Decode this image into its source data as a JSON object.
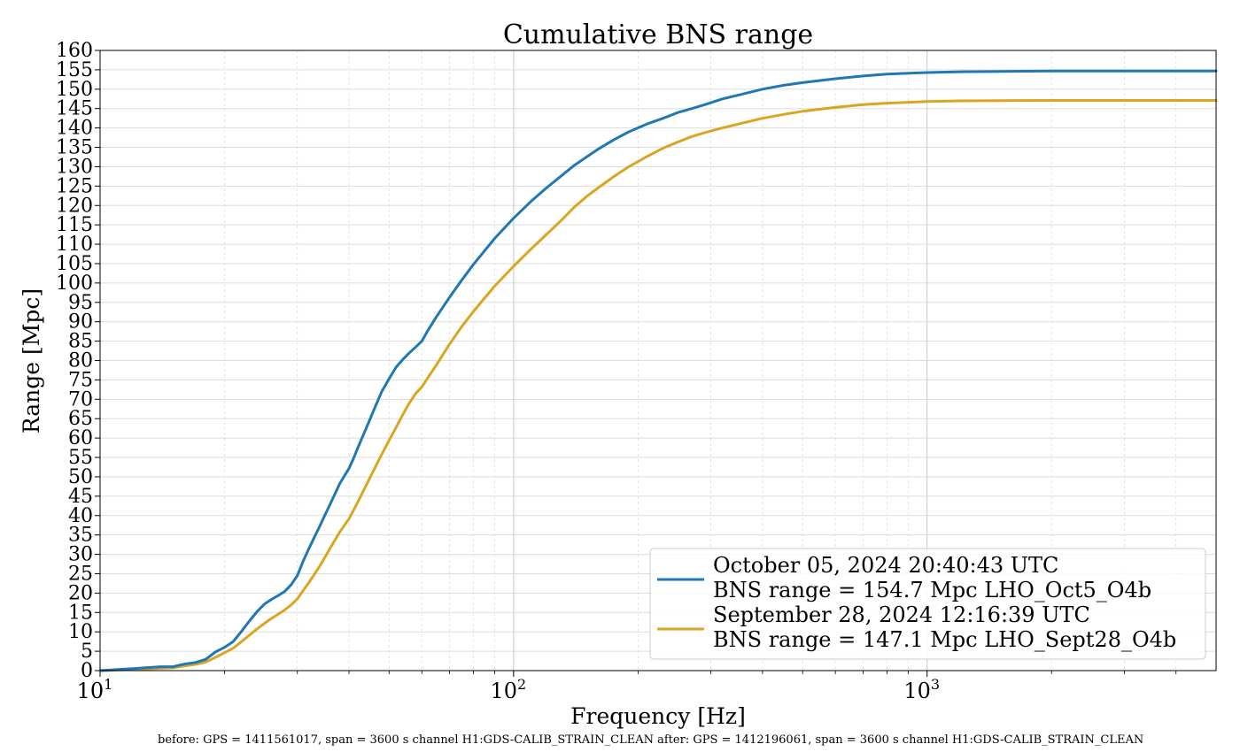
{
  "chart_data": {
    "type": "line",
    "title": "Cumulative BNS range",
    "xlabel": "Frequency [Hz]",
    "ylabel": "Range [Mpc]",
    "xscale": "log",
    "xlim": [
      10,
      5000
    ],
    "ylim": [
      0,
      160
    ],
    "ytick_step": 5,
    "x_major_ticks": [
      {
        "value": 10,
        "base": "10",
        "exp": "1"
      },
      {
        "value": 100,
        "base": "10",
        "exp": "2"
      },
      {
        "value": 1000,
        "base": "10",
        "exp": "3"
      }
    ],
    "grid": true,
    "legend_position": "lower right",
    "series": [
      {
        "name": "October 05, 2024 20:40:43 UTC",
        "name_line2": "BNS range = 154.7 Mpc LHO_Oct5_O4b",
        "color": "#1f77b4",
        "x": [
          10,
          12,
          14,
          15,
          16,
          17,
          18,
          19,
          20,
          21,
          22,
          23,
          24,
          25,
          26,
          27,
          28,
          29,
          30,
          31,
          32,
          33,
          34,
          35,
          36,
          38,
          40,
          41,
          42,
          44,
          46,
          48,
          50,
          52,
          54,
          56,
          58,
          60,
          62,
          65,
          70,
          75,
          80,
          90,
          100,
          110,
          120,
          130,
          140,
          150,
          160,
          175,
          190,
          210,
          230,
          250,
          270,
          290,
          300,
          320,
          350,
          400,
          450,
          500,
          600,
          700,
          800,
          1000,
          1200,
          1500,
          2000,
          3000,
          5000
        ],
        "y": [
          0,
          0.5,
          1,
          1,
          1.7,
          2.1,
          2.9,
          4.8,
          6,
          7.5,
          10.2,
          12.9,
          15.3,
          17.2,
          18.4,
          19.4,
          20.5,
          22.2,
          24.5,
          28.3,
          31.5,
          34.5,
          37.3,
          40.2,
          42.9,
          48.3,
          52.2,
          54.7,
          57.5,
          62.5,
          67.4,
          72,
          75.3,
          78.3,
          80.3,
          82,
          83.5,
          85,
          87.7,
          91.2,
          96.3,
          100.8,
          104.8,
          111.5,
          116.7,
          121,
          124.5,
          127.5,
          130.3,
          132.5,
          134.5,
          137,
          139,
          141,
          142.5,
          144,
          145,
          146,
          146.5,
          147.5,
          148.5,
          150,
          151,
          151.7,
          152.7,
          153.4,
          153.9,
          154.3,
          154.5,
          154.6,
          154.7,
          154.7,
          154.7
        ]
      },
      {
        "name": "September 28, 2024 12:16:39 UTC",
        "name_line2": "BNS range = 147.1 Mpc LHO_Sept28_O4b",
        "color": "#daa520",
        "x": [
          10,
          12,
          14,
          15,
          16,
          17,
          18,
          19,
          20,
          21,
          22,
          23,
          24,
          25,
          26,
          27,
          28,
          29,
          30,
          31,
          32,
          33,
          34,
          35,
          36,
          38,
          40,
          42,
          44,
          46,
          48,
          50,
          52,
          54,
          56,
          58,
          60,
          62,
          65,
          70,
          75,
          80,
          90,
          100,
          110,
          120,
          130,
          140,
          150,
          160,
          175,
          190,
          210,
          230,
          250,
          270,
          290,
          300,
          320,
          350,
          400,
          450,
          500,
          600,
          700,
          800,
          1000,
          1200,
          1500,
          2000,
          3000,
          5000
        ],
        "y": [
          0,
          0.3,
          0.6,
          0.7,
          1.2,
          1.6,
          2.2,
          3.4,
          4.6,
          5.8,
          7.5,
          9.2,
          10.8,
          12.2,
          13.5,
          14.6,
          15.7,
          17,
          18.5,
          20.7,
          22.7,
          24.9,
          27,
          29.3,
          31.6,
          35.8,
          39.2,
          43.5,
          47.8,
          51.9,
          55.8,
          59.4,
          62.8,
          66.1,
          69.1,
          71.5,
          73.2,
          75.5,
          78.8,
          84.2,
          88.8,
          92.7,
          99.2,
          104.3,
          108.7,
          112.5,
          116,
          119.5,
          122.3,
          124.5,
          127.5,
          130,
          132.6,
          134.8,
          136.4,
          137.8,
          138.8,
          139.2,
          140,
          141,
          142.5,
          143.5,
          144.3,
          145.3,
          146,
          146.4,
          146.8,
          147,
          147.05,
          147.1,
          147.1,
          147.1
        ]
      }
    ]
  },
  "footer_note": "before: GPS = 1411561017, span = 3600 s channel H1:GDS-CALIB_STRAIN_CLEAN after: GPS = 1412196061, span = 3600 s channel H1:GDS-CALIB_STRAIN_CLEAN"
}
